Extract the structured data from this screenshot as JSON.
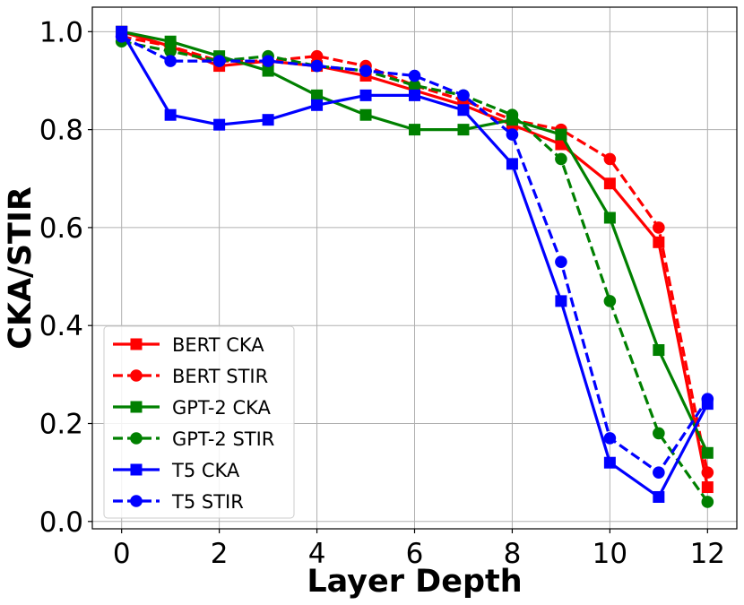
{
  "chart_data": {
    "type": "line",
    "xlabel": "Layer Depth",
    "ylabel": "CKA/STIR",
    "xlim": [
      -0.6,
      12.6
    ],
    "ylim": [
      -0.015,
      1.05
    ],
    "xticks": [
      0,
      2,
      4,
      6,
      8,
      10,
      12
    ],
    "xtick_labels": [
      "0",
      "2",
      "4",
      "6",
      "8",
      "10",
      "12"
    ],
    "yticks": [
      0.0,
      0.2,
      0.4,
      0.6,
      0.8,
      1.0
    ],
    "ytick_labels": [
      "0.0",
      "0.2",
      "0.4",
      "0.6",
      "0.8",
      "1.0"
    ],
    "grid": true,
    "legend_position": "lower-left",
    "x": [
      0,
      1,
      2,
      3,
      4,
      5,
      6,
      7,
      8,
      9,
      10,
      11,
      12
    ],
    "series": [
      {
        "name": "BERT CKA",
        "color": "#ff0000",
        "linestyle": "solid",
        "marker": "square",
        "values": [
          1.0,
          0.97,
          0.93,
          0.94,
          0.93,
          0.91,
          0.88,
          0.85,
          0.81,
          0.77,
          0.69,
          0.57,
          0.07
        ]
      },
      {
        "name": "BERT STIR",
        "color": "#ff0000",
        "linestyle": "dashed",
        "marker": "circle",
        "values": [
          0.99,
          0.97,
          0.94,
          0.94,
          0.95,
          0.93,
          0.89,
          0.86,
          0.82,
          0.8,
          0.74,
          0.6,
          0.1
        ]
      },
      {
        "name": "GPT-2 CKA",
        "color": "#008000",
        "linestyle": "solid",
        "marker": "square",
        "values": [
          1.0,
          0.98,
          0.95,
          0.92,
          0.87,
          0.83,
          0.8,
          0.8,
          0.82,
          0.79,
          0.62,
          0.35,
          0.14
        ]
      },
      {
        "name": "GPT-2 STIR",
        "color": "#008000",
        "linestyle": "dashed",
        "marker": "circle",
        "values": [
          0.98,
          0.96,
          0.94,
          0.95,
          0.93,
          0.92,
          0.89,
          0.87,
          0.83,
          0.74,
          0.45,
          0.18,
          0.04
        ]
      },
      {
        "name": "T5 CKA",
        "color": "#0000ff",
        "linestyle": "solid",
        "marker": "square",
        "values": [
          1.0,
          0.83,
          0.81,
          0.82,
          0.85,
          0.87,
          0.87,
          0.84,
          0.73,
          0.45,
          0.12,
          0.05,
          0.24
        ]
      },
      {
        "name": "T5 STIR",
        "color": "#0000ff",
        "linestyle": "dashed",
        "marker": "circle",
        "values": [
          0.99,
          0.94,
          0.94,
          0.94,
          0.93,
          0.92,
          0.91,
          0.87,
          0.79,
          0.53,
          0.17,
          0.1,
          0.25
        ]
      }
    ]
  }
}
